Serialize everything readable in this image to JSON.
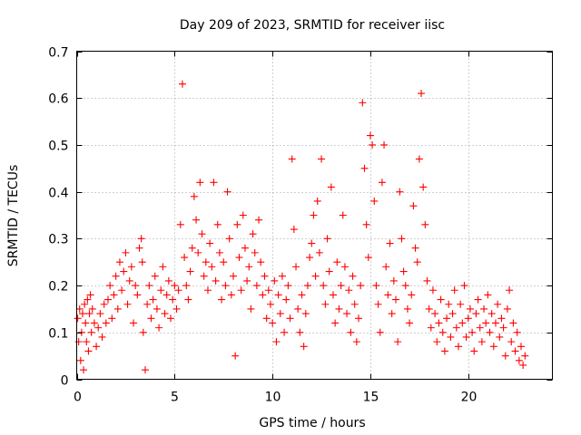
{
  "chart_data": {
    "type": "scatter",
    "title": "Day 209 of 2023, SRMTID for receiver iisc",
    "xlabel": "GPS time / hours",
    "ylabel": "SRMTID / TECUs",
    "xlim": [
      0,
      24.3
    ],
    "ylim": [
      0,
      0.7
    ],
    "x_ticks": [
      0,
      5,
      10,
      15,
      20
    ],
    "y_ticks": [
      0,
      0.1,
      0.2,
      0.3,
      0.4,
      0.5,
      0.6,
      0.7
    ],
    "x_tick_labels": [
      "0",
      "5",
      "10",
      "15",
      "20"
    ],
    "y_tick_labels": [
      "0",
      "0.1",
      "0.2",
      "0.3",
      "0.4",
      "0.5",
      "0.6",
      "0.7"
    ],
    "grid": true,
    "marker": "+",
    "color": "#ff0000",
    "series": [
      {
        "name": "SRMTID",
        "points": [
          [
            0.05,
            0.13
          ],
          [
            0.1,
            0.08
          ],
          [
            0.15,
            0.15
          ],
          [
            0.2,
            0.04
          ],
          [
            0.25,
            0.1
          ],
          [
            0.3,
            0.14
          ],
          [
            0.35,
            0.02
          ],
          [
            0.4,
            0.16
          ],
          [
            0.45,
            0.12
          ],
          [
            0.5,
            0.08
          ],
          [
            0.55,
            0.17
          ],
          [
            0.6,
            0.06
          ],
          [
            0.65,
            0.14
          ],
          [
            0.7,
            0.18
          ],
          [
            0.75,
            0.1
          ],
          [
            0.8,
            0.15
          ],
          [
            0.9,
            0.12
          ],
          [
            1.0,
            0.07
          ],
          [
            1.1,
            0.11
          ],
          [
            1.2,
            0.14
          ],
          [
            1.3,
            0.09
          ],
          [
            1.4,
            0.16
          ],
          [
            1.5,
            0.12
          ],
          [
            1.6,
            0.17
          ],
          [
            1.7,
            0.2
          ],
          [
            1.8,
            0.13
          ],
          [
            1.9,
            0.18
          ],
          [
            2.0,
            0.22
          ],
          [
            2.1,
            0.15
          ],
          [
            2.2,
            0.25
          ],
          [
            2.3,
            0.19
          ],
          [
            2.4,
            0.23
          ],
          [
            2.5,
            0.27
          ],
          [
            2.6,
            0.16
          ],
          [
            2.7,
            0.21
          ],
          [
            2.8,
            0.24
          ],
          [
            2.9,
            0.12
          ],
          [
            3.0,
            0.2
          ],
          [
            3.1,
            0.18
          ],
          [
            3.2,
            0.28
          ],
          [
            3.3,
            0.3
          ],
          [
            3.35,
            0.25
          ],
          [
            3.4,
            0.1
          ],
          [
            3.5,
            0.02
          ],
          [
            3.6,
            0.16
          ],
          [
            3.7,
            0.2
          ],
          [
            3.8,
            0.13
          ],
          [
            3.9,
            0.17
          ],
          [
            4.0,
            0.22
          ],
          [
            4.1,
            0.15
          ],
          [
            4.2,
            0.11
          ],
          [
            4.3,
            0.19
          ],
          [
            4.4,
            0.24
          ],
          [
            4.5,
            0.14
          ],
          [
            4.6,
            0.18
          ],
          [
            4.7,
            0.21
          ],
          [
            4.8,
            0.13
          ],
          [
            4.9,
            0.17
          ],
          [
            5.0,
            0.2
          ],
          [
            5.1,
            0.15
          ],
          [
            5.2,
            0.19
          ],
          [
            5.3,
            0.33
          ],
          [
            5.4,
            0.63
          ],
          [
            5.5,
            0.26
          ],
          [
            5.6,
            0.2
          ],
          [
            5.7,
            0.17
          ],
          [
            5.8,
            0.23
          ],
          [
            5.9,
            0.28
          ],
          [
            6.0,
            0.39
          ],
          [
            6.1,
            0.34
          ],
          [
            6.2,
            0.27
          ],
          [
            6.3,
            0.42
          ],
          [
            6.4,
            0.31
          ],
          [
            6.5,
            0.22
          ],
          [
            6.6,
            0.25
          ],
          [
            6.7,
            0.19
          ],
          [
            6.8,
            0.29
          ],
          [
            6.9,
            0.24
          ],
          [
            7.0,
            0.42
          ],
          [
            7.1,
            0.21
          ],
          [
            7.2,
            0.33
          ],
          [
            7.3,
            0.27
          ],
          [
            7.4,
            0.17
          ],
          [
            7.5,
            0.25
          ],
          [
            7.6,
            0.2
          ],
          [
            7.7,
            0.4
          ],
          [
            7.8,
            0.3
          ],
          [
            7.9,
            0.18
          ],
          [
            8.0,
            0.22
          ],
          [
            8.1,
            0.05
          ],
          [
            8.2,
            0.33
          ],
          [
            8.3,
            0.26
          ],
          [
            8.4,
            0.19
          ],
          [
            8.5,
            0.35
          ],
          [
            8.6,
            0.28
          ],
          [
            8.7,
            0.21
          ],
          [
            8.8,
            0.24
          ],
          [
            8.9,
            0.15
          ],
          [
            9.0,
            0.31
          ],
          [
            9.1,
            0.27
          ],
          [
            9.2,
            0.2
          ],
          [
            9.3,
            0.34
          ],
          [
            9.4,
            0.25
          ],
          [
            9.5,
            0.18
          ],
          [
            9.6,
            0.22
          ],
          [
            9.7,
            0.13
          ],
          [
            9.8,
            0.19
          ],
          [
            9.9,
            0.16
          ],
          [
            10.0,
            0.12
          ],
          [
            10.1,
            0.21
          ],
          [
            10.2,
            0.08
          ],
          [
            10.3,
            0.18
          ],
          [
            10.4,
            0.14
          ],
          [
            10.5,
            0.22
          ],
          [
            10.6,
            0.1
          ],
          [
            10.7,
            0.17
          ],
          [
            10.8,
            0.2
          ],
          [
            10.9,
            0.13
          ],
          [
            11.0,
            0.47
          ],
          [
            11.1,
            0.32
          ],
          [
            11.2,
            0.24
          ],
          [
            11.3,
            0.15
          ],
          [
            11.4,
            0.1
          ],
          [
            11.5,
            0.18
          ],
          [
            11.6,
            0.07
          ],
          [
            11.7,
            0.14
          ],
          [
            11.8,
            0.2
          ],
          [
            11.9,
            0.26
          ],
          [
            12.0,
            0.29
          ],
          [
            12.1,
            0.35
          ],
          [
            12.2,
            0.22
          ],
          [
            12.3,
            0.38
          ],
          [
            12.4,
            0.27
          ],
          [
            12.5,
            0.47
          ],
          [
            12.6,
            0.2
          ],
          [
            12.7,
            0.16
          ],
          [
            12.8,
            0.3
          ],
          [
            12.9,
            0.23
          ],
          [
            13.0,
            0.41
          ],
          [
            13.1,
            0.18
          ],
          [
            13.2,
            0.12
          ],
          [
            13.3,
            0.25
          ],
          [
            13.4,
            0.15
          ],
          [
            13.5,
            0.2
          ],
          [
            13.6,
            0.35
          ],
          [
            13.7,
            0.24
          ],
          [
            13.8,
            0.14
          ],
          [
            13.9,
            0.19
          ],
          [
            14.0,
            0.1
          ],
          [
            14.1,
            0.22
          ],
          [
            14.2,
            0.16
          ],
          [
            14.3,
            0.08
          ],
          [
            14.4,
            0.13
          ],
          [
            14.5,
            0.2
          ],
          [
            14.6,
            0.59
          ],
          [
            14.7,
            0.45
          ],
          [
            14.8,
            0.33
          ],
          [
            14.9,
            0.26
          ],
          [
            15.0,
            0.52
          ],
          [
            15.1,
            0.5
          ],
          [
            15.2,
            0.38
          ],
          [
            15.3,
            0.2
          ],
          [
            15.4,
            0.16
          ],
          [
            15.5,
            0.1
          ],
          [
            15.6,
            0.42
          ],
          [
            15.7,
            0.5
          ],
          [
            15.8,
            0.24
          ],
          [
            15.9,
            0.18
          ],
          [
            16.0,
            0.29
          ],
          [
            16.1,
            0.14
          ],
          [
            16.2,
            0.21
          ],
          [
            16.3,
            0.17
          ],
          [
            16.4,
            0.08
          ],
          [
            16.5,
            0.4
          ],
          [
            16.6,
            0.3
          ],
          [
            16.7,
            0.23
          ],
          [
            16.8,
            0.2
          ],
          [
            16.9,
            0.15
          ],
          [
            17.0,
            0.12
          ],
          [
            17.1,
            0.18
          ],
          [
            17.2,
            0.37
          ],
          [
            17.3,
            0.28
          ],
          [
            17.4,
            0.25
          ],
          [
            17.5,
            0.47
          ],
          [
            17.6,
            0.61
          ],
          [
            17.7,
            0.41
          ],
          [
            17.8,
            0.33
          ],
          [
            17.9,
            0.21
          ],
          [
            18.0,
            0.15
          ],
          [
            18.1,
            0.11
          ],
          [
            18.2,
            0.19
          ],
          [
            18.3,
            0.14
          ],
          [
            18.4,
            0.08
          ],
          [
            18.5,
            0.12
          ],
          [
            18.6,
            0.17
          ],
          [
            18.7,
            0.1
          ],
          [
            18.8,
            0.06
          ],
          [
            18.9,
            0.13
          ],
          [
            19.0,
            0.16
          ],
          [
            19.1,
            0.09
          ],
          [
            19.2,
            0.14
          ],
          [
            19.3,
            0.19
          ],
          [
            19.4,
            0.11
          ],
          [
            19.5,
            0.07
          ],
          [
            19.6,
            0.16
          ],
          [
            19.7,
            0.12
          ],
          [
            19.8,
            0.2
          ],
          [
            19.9,
            0.09
          ],
          [
            20.0,
            0.13
          ],
          [
            20.1,
            0.15
          ],
          [
            20.2,
            0.1
          ],
          [
            20.3,
            0.06
          ],
          [
            20.4,
            0.14
          ],
          [
            20.5,
            0.17
          ],
          [
            20.6,
            0.11
          ],
          [
            20.7,
            0.08
          ],
          [
            20.8,
            0.15
          ],
          [
            20.9,
            0.12
          ],
          [
            21.0,
            0.18
          ],
          [
            21.1,
            0.1
          ],
          [
            21.2,
            0.14
          ],
          [
            21.3,
            0.07
          ],
          [
            21.4,
            0.12
          ],
          [
            21.5,
            0.16
          ],
          [
            21.6,
            0.09
          ],
          [
            21.7,
            0.13
          ],
          [
            21.8,
            0.11
          ],
          [
            21.9,
            0.05
          ],
          [
            22.0,
            0.15
          ],
          [
            22.1,
            0.19
          ],
          [
            22.2,
            0.08
          ],
          [
            22.3,
            0.12
          ],
          [
            22.4,
            0.06
          ],
          [
            22.5,
            0.1
          ],
          [
            22.6,
            0.04
          ],
          [
            22.7,
            0.07
          ],
          [
            22.8,
            0.03
          ],
          [
            22.9,
            0.05
          ]
        ]
      }
    ]
  }
}
